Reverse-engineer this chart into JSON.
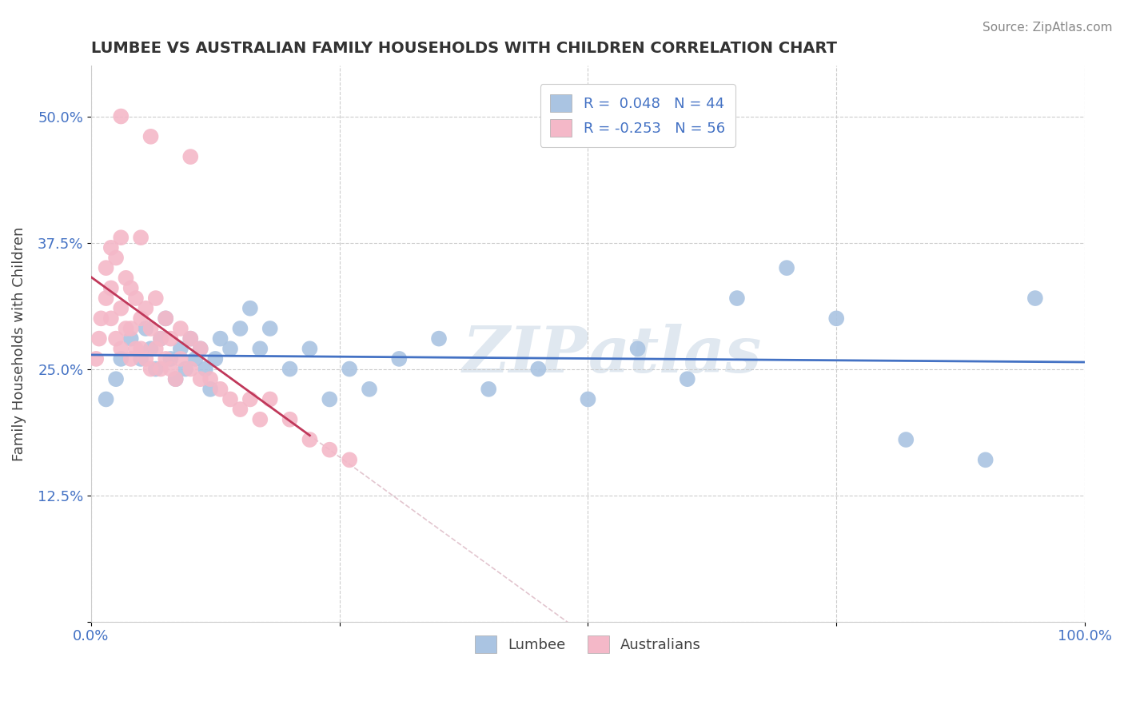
{
  "title": "LUMBEE VS AUSTRALIAN FAMILY HOUSEHOLDS WITH CHILDREN CORRELATION CHART",
  "source": "Source: ZipAtlas.com",
  "xlabel": "",
  "ylabel": "Family Households with Children",
  "xlim": [
    0.0,
    1.0
  ],
  "ylim": [
    0.0,
    0.55
  ],
  "yticks": [
    0.0,
    0.125,
    0.25,
    0.375,
    0.5
  ],
  "ytick_labels": [
    "",
    "12.5%",
    "25.0%",
    "37.5%",
    "50.0%"
  ],
  "xticks": [
    0.0,
    0.25,
    0.5,
    0.75,
    1.0
  ],
  "xtick_labels": [
    "0.0%",
    "",
    "",
    "",
    "100.0%"
  ],
  "legend_R1": "0.048",
  "legend_N1": "44",
  "legend_R2": "-0.253",
  "legend_N2": "56",
  "lumbee_color": "#aac4e2",
  "australian_color": "#f4b8c8",
  "lumbee_line_color": "#4472c4",
  "australian_line_color": "#c0385a",
  "watermark_color": "#e0e8f0",
  "lumbee_x": [
    0.015,
    0.025,
    0.03,
    0.04,
    0.05,
    0.055,
    0.06,
    0.065,
    0.07,
    0.075,
    0.08,
    0.085,
    0.09,
    0.095,
    0.1,
    0.105,
    0.11,
    0.115,
    0.12,
    0.125,
    0.13,
    0.14,
    0.15,
    0.16,
    0.17,
    0.18,
    0.2,
    0.22,
    0.24,
    0.26,
    0.28,
    0.31,
    0.35,
    0.4,
    0.45,
    0.5,
    0.55,
    0.6,
    0.65,
    0.7,
    0.75,
    0.82,
    0.9,
    0.95
  ],
  "lumbee_y": [
    0.22,
    0.24,
    0.26,
    0.28,
    0.26,
    0.29,
    0.27,
    0.25,
    0.28,
    0.3,
    0.26,
    0.24,
    0.27,
    0.25,
    0.28,
    0.26,
    0.27,
    0.25,
    0.23,
    0.26,
    0.28,
    0.27,
    0.29,
    0.31,
    0.27,
    0.29,
    0.25,
    0.27,
    0.22,
    0.25,
    0.23,
    0.26,
    0.28,
    0.23,
    0.25,
    0.22,
    0.27,
    0.24,
    0.32,
    0.35,
    0.3,
    0.18,
    0.16,
    0.32
  ],
  "australian_x": [
    0.005,
    0.008,
    0.01,
    0.015,
    0.015,
    0.02,
    0.02,
    0.02,
    0.025,
    0.025,
    0.03,
    0.03,
    0.03,
    0.035,
    0.035,
    0.04,
    0.04,
    0.04,
    0.045,
    0.045,
    0.05,
    0.05,
    0.05,
    0.055,
    0.055,
    0.06,
    0.06,
    0.065,
    0.065,
    0.07,
    0.07,
    0.075,
    0.075,
    0.08,
    0.08,
    0.085,
    0.09,
    0.09,
    0.1,
    0.1,
    0.11,
    0.11,
    0.12,
    0.13,
    0.14,
    0.15,
    0.16,
    0.17,
    0.18,
    0.2,
    0.22,
    0.24,
    0.26,
    0.1,
    0.06,
    0.03
  ],
  "australian_y": [
    0.26,
    0.28,
    0.3,
    0.32,
    0.35,
    0.3,
    0.33,
    0.37,
    0.28,
    0.36,
    0.27,
    0.31,
    0.38,
    0.29,
    0.34,
    0.26,
    0.29,
    0.33,
    0.27,
    0.32,
    0.27,
    0.3,
    0.38,
    0.26,
    0.31,
    0.25,
    0.29,
    0.27,
    0.32,
    0.25,
    0.28,
    0.26,
    0.3,
    0.25,
    0.28,
    0.24,
    0.26,
    0.29,
    0.25,
    0.28,
    0.24,
    0.27,
    0.24,
    0.23,
    0.22,
    0.21,
    0.22,
    0.2,
    0.22,
    0.2,
    0.18,
    0.17,
    0.16,
    0.46,
    0.48,
    0.5
  ]
}
